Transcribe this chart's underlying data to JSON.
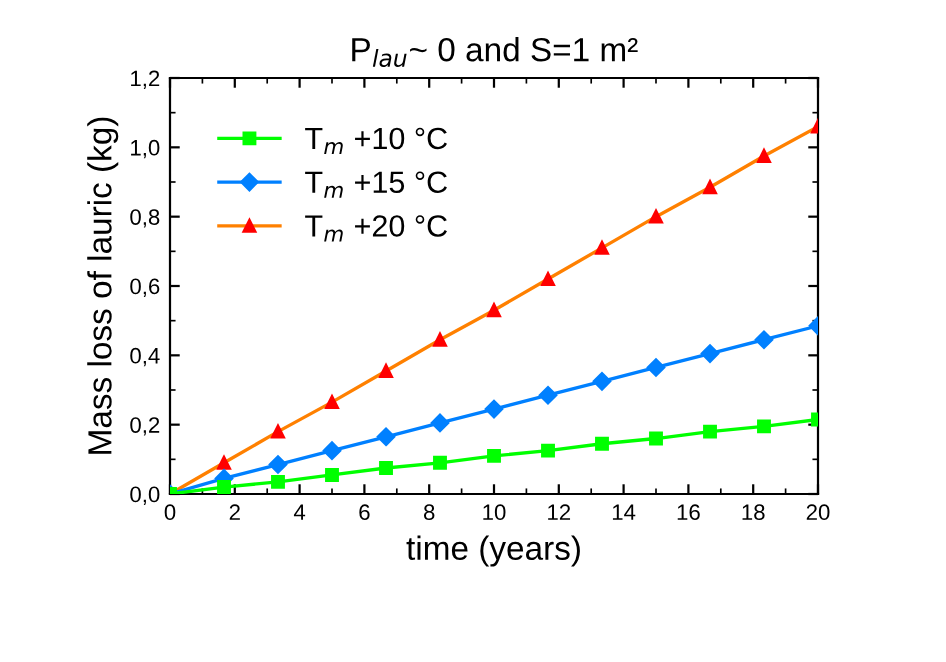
{
  "chart_data": {
    "type": "line",
    "title": "P$_{lau}$~ 0 and S=1 m²",
    "xlabel": "time (years)",
    "ylabel": "Mass loss of lauric (kg)",
    "x": [
      0,
      1.667,
      3.333,
      5,
      6.667,
      8.333,
      10,
      11.667,
      13.333,
      15,
      16.667,
      18.333,
      20
    ],
    "series": [
      {
        "name": "T$_{m}$ +10 °C",
        "color": "#00ff00",
        "marker": "square",
        "values": [
          0,
          0.02,
          0.035,
          0.055,
          0.075,
          0.09,
          0.11,
          0.125,
          0.145,
          0.16,
          0.18,
          0.195,
          0.215
        ]
      },
      {
        "name": "T$_{m}$ +15 °C",
        "color": "#0080ff",
        "marker": "diamond",
        "values": [
          0,
          0.045,
          0.085,
          0.125,
          0.165,
          0.205,
          0.245,
          0.285,
          0.325,
          0.365,
          0.405,
          0.445,
          0.485
        ]
      },
      {
        "name": "T$_{m}$ +20 °C",
        "color": "#ff8000",
        "marker": "triangle",
        "values": [
          0,
          0.09,
          0.18,
          0.265,
          0.355,
          0.445,
          0.53,
          0.62,
          0.71,
          0.8,
          0.885,
          0.975,
          1.06
        ]
      }
    ],
    "xlim": [
      0,
      20
    ],
    "xticks": [
      0,
      2,
      4,
      6,
      8,
      10,
      12,
      14,
      16,
      18,
      20
    ],
    "ylim": [
      0,
      1.2
    ],
    "yticks": [
      {
        "value": 0,
        "label": "0,0"
      },
      {
        "value": 0.2,
        "label": "0,2"
      },
      {
        "value": 0.4,
        "label": "0,4"
      },
      {
        "value": 0.6,
        "label": "0,6"
      },
      {
        "value": 0.8,
        "label": "0,8"
      },
      {
        "value": 1.0,
        "label": "1,0"
      },
      {
        "value": 1.2,
        "label": "1,2"
      }
    ],
    "legend": "top left",
    "grid": false
  }
}
